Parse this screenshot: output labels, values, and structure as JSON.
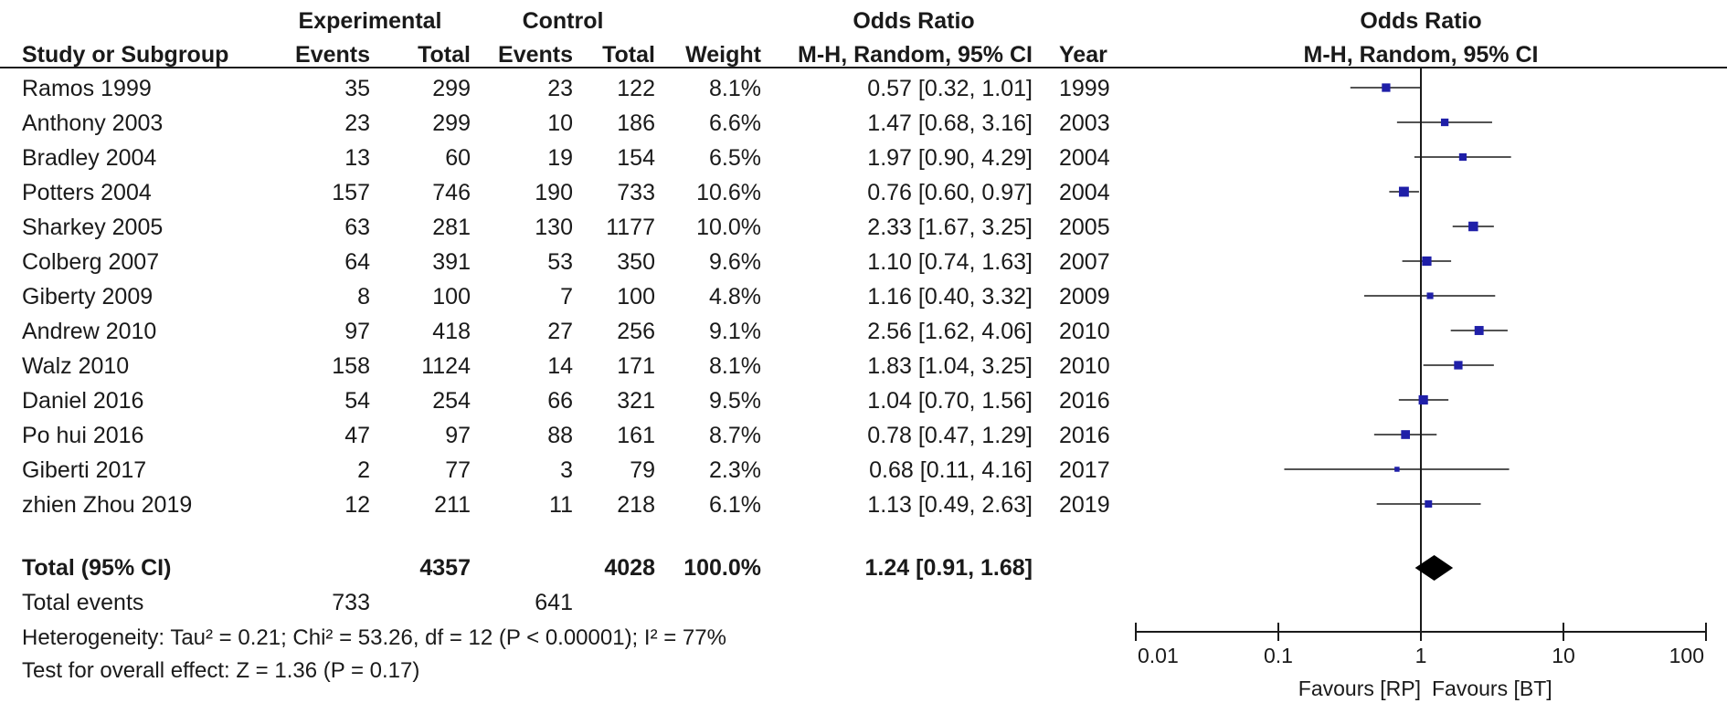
{
  "headers": {
    "group_experimental": "Experimental",
    "group_control": "Control",
    "group_or": "Odds Ratio",
    "plot_title": "Odds Ratio",
    "plot_subtitle": "M-H, Random, 95% CI",
    "columns": {
      "study": "Study or Subgroup",
      "exp_events": "Events",
      "exp_total": "Total",
      "ctl_events": "Events",
      "ctl_total": "Total",
      "weight": "Weight",
      "or": "M-H, Random, 95% CI",
      "year": "Year"
    }
  },
  "rows": [
    {
      "study": "Ramos 1999",
      "exp_events": "35",
      "exp_total": "299",
      "ctl_events": "23",
      "ctl_total": "122",
      "weight": "8.1%",
      "or_text": "0.57 [0.32, 1.01]",
      "year": "1999"
    },
    {
      "study": "Anthony 2003",
      "exp_events": "23",
      "exp_total": "299",
      "ctl_events": "10",
      "ctl_total": "186",
      "weight": "6.6%",
      "or_text": "1.47 [0.68, 3.16]",
      "year": "2003"
    },
    {
      "study": "Bradley 2004",
      "exp_events": "13",
      "exp_total": "60",
      "ctl_events": "19",
      "ctl_total": "154",
      "weight": "6.5%",
      "or_text": "1.97 [0.90, 4.29]",
      "year": "2004"
    },
    {
      "study": "Potters 2004",
      "exp_events": "157",
      "exp_total": "746",
      "ctl_events": "190",
      "ctl_total": "733",
      "weight": "10.6%",
      "or_text": "0.76 [0.60, 0.97]",
      "year": "2004"
    },
    {
      "study": "Sharkey 2005",
      "exp_events": "63",
      "exp_total": "281",
      "ctl_events": "130",
      "ctl_total": "1177",
      "weight": "10.0%",
      "or_text": "2.33 [1.67, 3.25]",
      "year": "2005"
    },
    {
      "study": "Colberg 2007",
      "exp_events": "64",
      "exp_total": "391",
      "ctl_events": "53",
      "ctl_total": "350",
      "weight": "9.6%",
      "or_text": "1.10 [0.74, 1.63]",
      "year": "2007"
    },
    {
      "study": "Giberty 2009",
      "exp_events": "8",
      "exp_total": "100",
      "ctl_events": "7",
      "ctl_total": "100",
      "weight": "4.8%",
      "or_text": "1.16 [0.40, 3.32]",
      "year": "2009"
    },
    {
      "study": "Andrew 2010",
      "exp_events": "97",
      "exp_total": "418",
      "ctl_events": "27",
      "ctl_total": "256",
      "weight": "9.1%",
      "or_text": "2.56 [1.62, 4.06]",
      "year": "2010"
    },
    {
      "study": "Walz 2010",
      "exp_events": "158",
      "exp_total": "1124",
      "ctl_events": "14",
      "ctl_total": "171",
      "weight": "8.1%",
      "or_text": "1.83 [1.04, 3.25]",
      "year": "2010"
    },
    {
      "study": "Daniel 2016",
      "exp_events": "54",
      "exp_total": "254",
      "ctl_events": "66",
      "ctl_total": "321",
      "weight": "9.5%",
      "or_text": "1.04 [0.70, 1.56]",
      "year": "2016"
    },
    {
      "study": "Po hui 2016",
      "exp_events": "47",
      "exp_total": "97",
      "ctl_events": "88",
      "ctl_total": "161",
      "weight": "8.7%",
      "or_text": "0.78 [0.47, 1.29]",
      "year": "2016"
    },
    {
      "study": "Giberti 2017",
      "exp_events": "2",
      "exp_total": "77",
      "ctl_events": "3",
      "ctl_total": "79",
      "weight": "2.3%",
      "or_text": "0.68 [0.11, 4.16]",
      "year": "2017"
    },
    {
      "study": "zhien Zhou 2019",
      "exp_events": "12",
      "exp_total": "211",
      "ctl_events": "11",
      "ctl_total": "218",
      "weight": "6.1%",
      "or_text": "1.13 [0.49, 2.63]",
      "year": "2019"
    }
  ],
  "total": {
    "label": "Total (95% CI)",
    "exp_total": "4357",
    "ctl_total": "4028",
    "weight": "100.0%",
    "or_text": "1.24 [0.91, 1.68]"
  },
  "total_events": {
    "label": "Total events",
    "exp": "733",
    "ctl": "641"
  },
  "heterogeneity": "Heterogeneity: Tau² = 0.21; Chi² = 53.26, df = 12 (P < 0.00001); I² = 77%",
  "overall_effect": "Test for overall effect: Z = 1.36 (P = 0.17)",
  "axis": {
    "ticks": [
      0.01,
      0.1,
      1,
      10,
      100
    ],
    "tick_labels": [
      "0.01",
      "0.1",
      "1",
      "10",
      "100"
    ],
    "left_label": "Favours [RP]",
    "right_label": "Favours [BT]"
  },
  "colors": {
    "marker": "#1f1fa8",
    "line": "#1a1a1a",
    "diamond": "#000000"
  },
  "chart_data": {
    "type": "forest",
    "scale": "log",
    "xlim": [
      0.01,
      100
    ],
    "reference_line": 1,
    "studies": [
      {
        "name": "Ramos 1999",
        "or": 0.57,
        "ci": [
          0.32,
          1.01
        ],
        "weight": 8.1
      },
      {
        "name": "Anthony 2003",
        "or": 1.47,
        "ci": [
          0.68,
          3.16
        ],
        "weight": 6.6
      },
      {
        "name": "Bradley 2004",
        "or": 1.97,
        "ci": [
          0.9,
          4.29
        ],
        "weight": 6.5
      },
      {
        "name": "Potters 2004",
        "or": 0.76,
        "ci": [
          0.6,
          0.97
        ],
        "weight": 10.6
      },
      {
        "name": "Sharkey 2005",
        "or": 2.33,
        "ci": [
          1.67,
          3.25
        ],
        "weight": 10.0
      },
      {
        "name": "Colberg 2007",
        "or": 1.1,
        "ci": [
          0.74,
          1.63
        ],
        "weight": 9.6
      },
      {
        "name": "Giberty 2009",
        "or": 1.16,
        "ci": [
          0.4,
          3.32
        ],
        "weight": 4.8
      },
      {
        "name": "Andrew 2010",
        "or": 2.56,
        "ci": [
          1.62,
          4.06
        ],
        "weight": 9.1
      },
      {
        "name": "Walz 2010",
        "or": 1.83,
        "ci": [
          1.04,
          3.25
        ],
        "weight": 8.1
      },
      {
        "name": "Daniel 2016",
        "or": 1.04,
        "ci": [
          0.7,
          1.56
        ],
        "weight": 9.5
      },
      {
        "name": "Po hui 2016",
        "or": 0.78,
        "ci": [
          0.47,
          1.29
        ],
        "weight": 8.7
      },
      {
        "name": "Giberti 2017",
        "or": 0.68,
        "ci": [
          0.11,
          4.16
        ],
        "weight": 2.3
      },
      {
        "name": "zhien Zhou 2019",
        "or": 1.13,
        "ci": [
          0.49,
          2.63
        ],
        "weight": 6.1
      }
    ],
    "pooled": {
      "or": 1.24,
      "ci": [
        0.91,
        1.68
      ]
    }
  }
}
